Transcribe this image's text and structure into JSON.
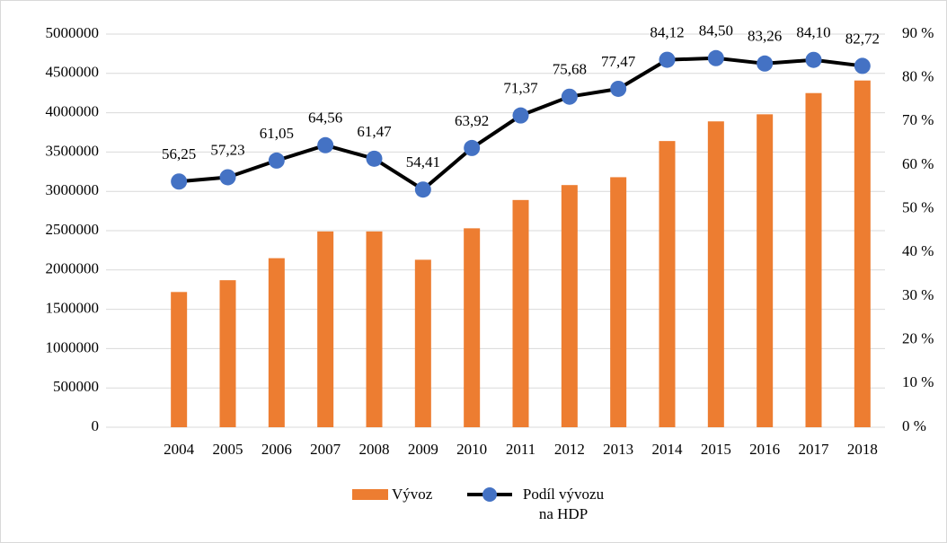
{
  "chart_data": {
    "type": "bar+line",
    "categories": [
      "2004",
      "2005",
      "2006",
      "2007",
      "2008",
      "2009",
      "2010",
      "2011",
      "2012",
      "2013",
      "2014",
      "2015",
      "2016",
      "2017",
      "2018"
    ],
    "series": [
      {
        "name": "Vývoz",
        "type": "bar",
        "color": "#ed7d31",
        "axis": "y",
        "values": [
          1720000,
          1870000,
          2150000,
          2490000,
          2490000,
          2130000,
          2530000,
          2890000,
          3080000,
          3180000,
          3640000,
          3890000,
          3980000,
          4250000,
          4410000
        ]
      },
      {
        "name": "Podíl vývozu na HDP",
        "type": "line",
        "color": "#000000",
        "marker_color": "#4472c4",
        "axis": "y2",
        "values": [
          56.25,
          57.23,
          61.05,
          64.56,
          61.47,
          54.41,
          63.92,
          71.37,
          75.68,
          77.47,
          84.12,
          84.5,
          83.26,
          84.1,
          82.72
        ],
        "value_labels": [
          "56,25",
          "57,23",
          "61,05",
          "64,56",
          "61,47",
          "54,41",
          "63,92",
          "71,37",
          "75,68",
          "77,47",
          "84,12",
          "84,50",
          "83,26",
          "84,10",
          "82,72"
        ]
      }
    ],
    "ylim": [
      0,
      5000000
    ],
    "yticks": [
      0,
      500000,
      1000000,
      1500000,
      2000000,
      2500000,
      3000000,
      3500000,
      4000000,
      4500000,
      5000000
    ],
    "y2lim": [
      0,
      90
    ],
    "y2ticks": [
      {
        "value": 0,
        "label": "0 %"
      },
      {
        "value": 10,
        "label": "10 %"
      },
      {
        "value": 20,
        "label": "20 %"
      },
      {
        "value": 30,
        "label": "30 %"
      },
      {
        "value": 40,
        "label": "40 %"
      },
      {
        "value": 50,
        "label": "50 %"
      },
      {
        "value": 60,
        "label": "60 %"
      },
      {
        "value": 70,
        "label": "70 %"
      },
      {
        "value": 80,
        "label": "80 %"
      },
      {
        "value": 90,
        "label": "90 %"
      }
    ],
    "grid": true,
    "legend": "bottom"
  }
}
